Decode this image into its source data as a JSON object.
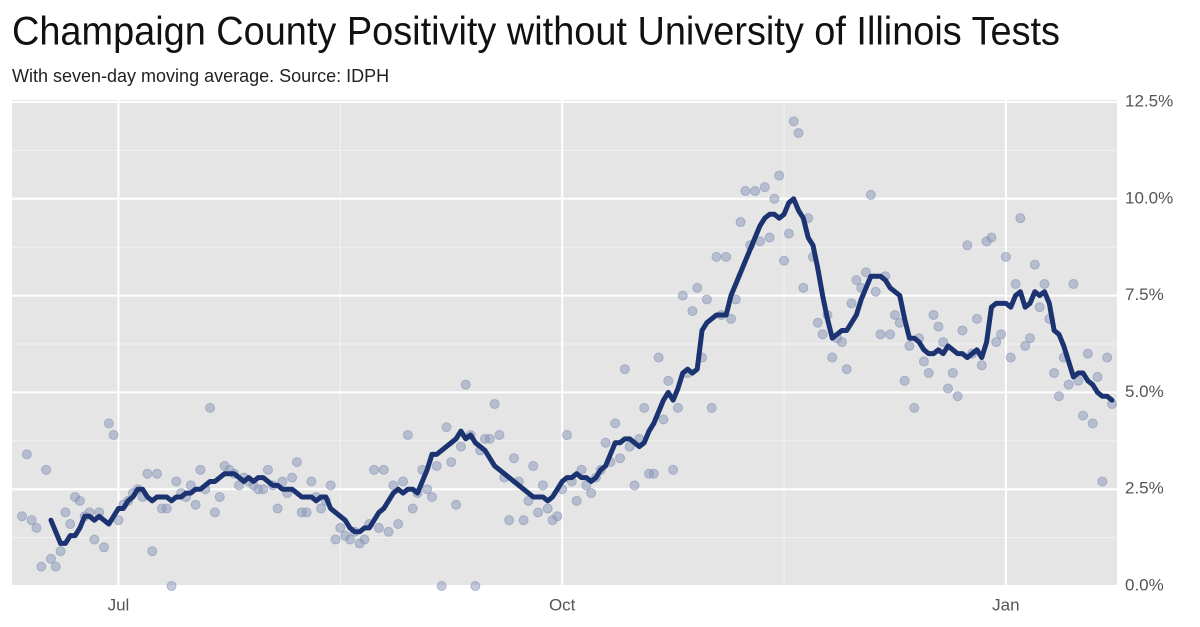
{
  "chart_data": {
    "type": "line",
    "title": "Champaign County Positivity without University of Illinois Tests",
    "subtitle": "With seven-day moving average. Source: IDPH",
    "categories": [
      null,
      null,
      null,
      null,
      null,
      null,
      null,
      null,
      null,
      null,
      null,
      null,
      null,
      null,
      null,
      null,
      null,
      null,
      null,
      null,
      "Jul",
      null,
      null,
      null,
      null,
      null,
      null,
      null,
      null,
      null,
      null,
      null,
      null,
      null,
      null,
      null,
      null,
      null,
      null,
      null,
      null,
      null,
      null,
      null,
      null,
      null,
      null,
      null,
      null,
      null,
      null,
      null,
      null,
      null,
      null,
      null,
      null,
      null,
      null,
      null,
      null,
      null,
      null,
      null,
      null,
      null,
      null,
      null,
      null,
      null,
      null,
      null,
      null,
      null,
      null,
      null,
      null,
      null,
      null,
      null,
      null,
      null,
      null,
      null,
      null,
      null,
      null,
      null,
      null,
      null,
      null,
      null,
      null,
      null,
      null,
      null,
      null,
      null,
      null,
      null,
      null,
      null,
      null,
      null,
      null,
      null,
      null,
      null,
      null,
      null,
      null,
      null,
      "Oct",
      null,
      null,
      null,
      null,
      null,
      null,
      null,
      null,
      null,
      null,
      null,
      null,
      null,
      null,
      null,
      null,
      null,
      null,
      null,
      null,
      null,
      null,
      null,
      null,
      null,
      null,
      null,
      null,
      null,
      null,
      null,
      null,
      null,
      null,
      null,
      null,
      null,
      null,
      null,
      null,
      null,
      null,
      null,
      null,
      null,
      null,
      null,
      null,
      null,
      null,
      null,
      null,
      null,
      null,
      null,
      null,
      null,
      null,
      null,
      null,
      null,
      null,
      null,
      null,
      null,
      null,
      null,
      null,
      null,
      null,
      null,
      null,
      null,
      null,
      null,
      null,
      null,
      null,
      null,
      null,
      null,
      null,
      null,
      null,
      null,
      null,
      null,
      null,
      null,
      null,
      null,
      "Jan",
      null,
      null,
      null,
      null,
      null,
      null,
      null,
      null,
      null,
      null,
      null,
      null,
      null,
      null,
      null,
      null,
      null,
      null,
      null,
      null,
      null,
      null
    ],
    "series": [
      {
        "type": "scatter",
        "color": "#8796b8",
        "values": [
          1.8,
          3.4,
          1.7,
          1.5,
          0.5,
          3.0,
          0.7,
          0.5,
          0.9,
          1.9,
          1.6,
          2.3,
          2.2,
          1.8,
          1.9,
          1.2,
          1.9,
          1.0,
          4.2,
          3.9,
          1.7,
          2.1,
          2.2,
          2.4,
          2.5,
          2.3,
          2.9,
          0.9,
          2.9,
          2.0,
          2.0,
          0.0,
          2.7,
          2.4,
          2.3,
          2.6,
          2.1,
          3.0,
          2.5,
          4.6,
          1.9,
          2.3,
          3.1,
          3.0,
          2.9,
          2.6,
          2.8,
          2.7,
          2.6,
          2.5,
          2.5,
          3.0,
          2.6,
          2.0,
          2.7,
          2.4,
          2.8,
          3.2,
          1.9,
          1.9,
          2.7,
          2.3,
          2.0,
          2.2,
          2.6,
          1.2,
          1.5,
          1.3,
          1.2,
          1.4,
          1.1,
          1.2,
          1.6,
          3.0,
          1.5,
          3.0,
          1.4,
          2.6,
          1.6,
          2.7,
          3.9,
          2.0,
          2.4,
          3.0,
          2.5,
          2.3,
          3.1,
          0.0,
          4.1,
          3.2,
          2.1,
          3.6,
          5.2,
          3.9,
          0.0,
          3.5,
          3.8,
          3.8,
          4.7,
          3.9,
          2.8,
          1.7,
          3.3,
          2.7,
          1.7,
          2.2,
          3.1,
          1.9,
          2.6,
          2.0,
          1.7,
          1.8,
          2.5,
          3.9,
          2.7,
          2.2,
          3.0,
          2.6,
          2.4,
          2.8,
          3.0,
          3.7,
          3.2,
          4.2,
          3.3,
          5.6,
          3.6,
          2.6,
          3.8,
          4.6,
          2.9,
          2.9,
          5.9,
          4.3,
          5.3,
          3.0,
          4.6,
          7.5,
          5.5,
          7.1,
          7.7,
          5.9,
          7.4,
          4.6,
          8.5,
          7.0,
          8.5,
          6.9,
          7.4,
          9.4,
          10.2,
          8.8,
          10.2,
          8.9,
          10.3,
          9.0,
          10.0,
          10.6,
          8.4,
          9.1,
          12.0,
          11.7,
          7.7,
          9.5,
          8.5,
          6.8,
          6.5,
          7.0,
          5.9,
          6.4,
          6.3,
          5.6,
          7.3,
          7.9,
          7.7,
          8.1,
          10.1,
          7.6,
          6.5,
          8.0,
          6.5,
          7.0,
          6.8,
          5.3,
          6.2,
          4.6,
          6.4,
          5.8,
          5.5,
          7.0,
          6.7,
          6.3,
          5.1,
          5.5,
          4.9,
          6.6,
          8.8,
          6.0,
          6.9,
          5.7,
          8.9,
          9.0,
          6.3,
          6.5,
          8.5,
          5.9,
          7.8,
          9.5,
          6.2,
          6.4,
          8.3,
          7.2,
          7.8,
          6.9,
          5.5,
          4.9,
          5.9,
          5.2,
          7.8,
          5.3,
          4.4,
          6.0,
          4.2,
          5.4,
          2.7,
          5.9,
          4.7
        ]
      },
      {
        "type": "line",
        "color": "#1b3370",
        "values": [
          null,
          null,
          null,
          null,
          null,
          null,
          1.7,
          1.4,
          1.1,
          1.1,
          1.3,
          1.3,
          1.5,
          1.8,
          1.8,
          1.7,
          1.8,
          1.7,
          1.6,
          1.8,
          2.0,
          2.0,
          2.2,
          2.3,
          2.5,
          2.5,
          2.3,
          2.2,
          2.3,
          2.3,
          2.3,
          2.2,
          2.3,
          2.3,
          2.4,
          2.4,
          2.5,
          2.5,
          2.6,
          2.7,
          2.7,
          2.8,
          2.9,
          2.9,
          2.9,
          2.8,
          2.7,
          2.8,
          2.7,
          2.8,
          2.8,
          2.7,
          2.6,
          2.6,
          2.5,
          2.5,
          2.5,
          2.4,
          2.3,
          2.3,
          2.3,
          2.2,
          2.3,
          2.3,
          2.0,
          1.9,
          1.8,
          1.7,
          1.5,
          1.4,
          1.4,
          1.5,
          1.5,
          1.7,
          1.9,
          2.0,
          2.2,
          2.4,
          2.5,
          2.4,
          2.5,
          2.5,
          2.4,
          2.7,
          3.0,
          3.4,
          3.4,
          3.5,
          3.6,
          3.7,
          3.8,
          4.0,
          3.8,
          3.9,
          3.7,
          3.6,
          3.5,
          3.3,
          3.1,
          3.0,
          2.9,
          2.8,
          2.7,
          2.6,
          2.5,
          2.4,
          2.3,
          2.3,
          2.3,
          2.2,
          2.3,
          2.5,
          2.7,
          2.8,
          2.8,
          2.9,
          2.8,
          2.8,
          2.7,
          2.8,
          3.0,
          3.1,
          3.4,
          3.7,
          3.7,
          3.8,
          3.8,
          3.7,
          3.6,
          3.7,
          4.0,
          4.2,
          4.5,
          4.8,
          5.0,
          4.8,
          5.1,
          5.5,
          5.6,
          5.5,
          5.6,
          6.6,
          6.8,
          6.9,
          7.0,
          7.0,
          7.0,
          7.5,
          7.8,
          8.1,
          8.4,
          8.7,
          9.0,
          9.3,
          9.5,
          9.6,
          9.6,
          9.5,
          9.6,
          9.9,
          10.0,
          9.7,
          9.5,
          9.0,
          8.8,
          8.2,
          7.5,
          6.9,
          6.4,
          6.5,
          6.6,
          6.6,
          6.8,
          7.0,
          7.4,
          7.7,
          8.0,
          8.0,
          8.0,
          7.9,
          7.7,
          7.6,
          7.5,
          6.9,
          6.4,
          6.4,
          6.3,
          6.1,
          6.0,
          6.0,
          6.1,
          6.0,
          6.2,
          6.1,
          6.0,
          6.0,
          5.9,
          6.0,
          6.1,
          5.9,
          6.3,
          7.2,
          7.3,
          7.3,
          7.3,
          7.2,
          7.5,
          7.6,
          7.2,
          7.3,
          7.6,
          7.5,
          7.6,
          7.3,
          6.6,
          6.5,
          6.2,
          5.8,
          5.4,
          5.5,
          5.5,
          5.3,
          5.2,
          5.0,
          4.9,
          4.9,
          4.8
        ]
      }
    ],
    "ylim": [
      0,
      12.5
    ],
    "yticks": [
      {
        "value": 0,
        "label": "0.0%"
      },
      {
        "value": 2.5,
        "label": "2.5%"
      },
      {
        "value": 5,
        "label": "5.0%"
      },
      {
        "value": 7.5,
        "label": "7.5%"
      },
      {
        "value": 10,
        "label": "10.0%"
      },
      {
        "value": 12.5,
        "label": "12.5%"
      }
    ],
    "grid": true
  }
}
